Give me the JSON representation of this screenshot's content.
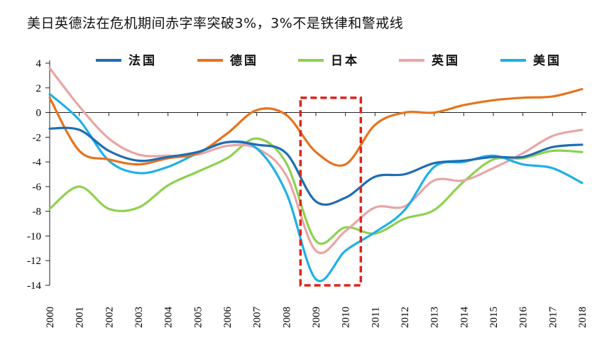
{
  "chart_data": {
    "type": "line",
    "title": "美日英德法在危机期间赤字率突破3%，3%不是铁律和警戒线",
    "xlabel": "",
    "ylabel": "",
    "x": [
      "2000",
      "2001",
      "2002",
      "2003",
      "2004",
      "2005",
      "2006",
      "2007",
      "2008",
      "2009",
      "2010",
      "2011",
      "2012",
      "2013",
      "2014",
      "2015",
      "2016",
      "2017",
      "2018"
    ],
    "ylim": [
      -14,
      4
    ],
    "yticks": [
      4,
      2,
      0,
      -2,
      -4,
      -6,
      -8,
      -10,
      -12,
      -14
    ],
    "legend_position": "top",
    "grid": false,
    "series": [
      {
        "name": "法国",
        "color": "#1f6db3",
        "values": [
          -1.3,
          -1.4,
          -3.1,
          -3.9,
          -3.6,
          -3.2,
          -2.4,
          -2.6,
          -3.3,
          -7.2,
          -6.9,
          -5.2,
          -5.0,
          -4.1,
          -3.9,
          -3.6,
          -3.6,
          -2.8,
          -2.6
        ]
      },
      {
        "name": "德国",
        "color": "#e7731c",
        "values": [
          1.2,
          -3.1,
          -3.8,
          -4.2,
          -3.7,
          -3.3,
          -1.7,
          0.2,
          -0.2,
          -3.2,
          -4.2,
          -1.0,
          0.0,
          0.0,
          0.6,
          1.0,
          1.2,
          1.3,
          1.9
        ]
      },
      {
        "name": "日本",
        "color": "#8fd14f",
        "values": [
          -7.8,
          -6.0,
          -7.8,
          -7.7,
          -5.9,
          -4.8,
          -3.7,
          -2.1,
          -4.1,
          -10.4,
          -9.3,
          -9.8,
          -8.6,
          -7.9,
          -5.6,
          -3.8,
          -3.7,
          -3.1,
          -3.2
        ]
      },
      {
        "name": "英国",
        "color": "#e8a5a5",
        "values": [
          3.6,
          0.5,
          -2.1,
          -3.4,
          -3.5,
          -3.4,
          -2.7,
          -2.9,
          -5.1,
          -11.2,
          -9.6,
          -7.7,
          -7.6,
          -5.5,
          -5.5,
          -4.5,
          -3.3,
          -1.9,
          -1.4
        ]
      },
      {
        "name": "美国",
        "color": "#1fb0e8",
        "values": [
          1.5,
          -0.6,
          -3.9,
          -4.9,
          -4.4,
          -3.3,
          -2.4,
          -2.9,
          -6.5,
          -13.5,
          -11.2,
          -9.7,
          -7.9,
          -4.4,
          -4.0,
          -3.5,
          -4.2,
          -4.5,
          -5.7
        ]
      }
    ],
    "annotations": [
      {
        "type": "dashed-rectangle",
        "color": "#e2231a",
        "x_range": [
          "2009",
          "2010"
        ],
        "y_range": [
          -14,
          1.2
        ]
      }
    ]
  }
}
